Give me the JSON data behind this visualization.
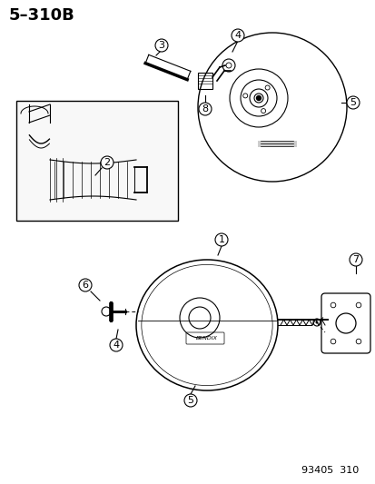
{
  "title": "5–310B",
  "footer": "93405  310",
  "bg_color": "#ffffff",
  "line_color": "#000000",
  "label_color": "#000000",
  "title_fontsize": 13,
  "label_fontsize": 9,
  "footer_fontsize": 8
}
